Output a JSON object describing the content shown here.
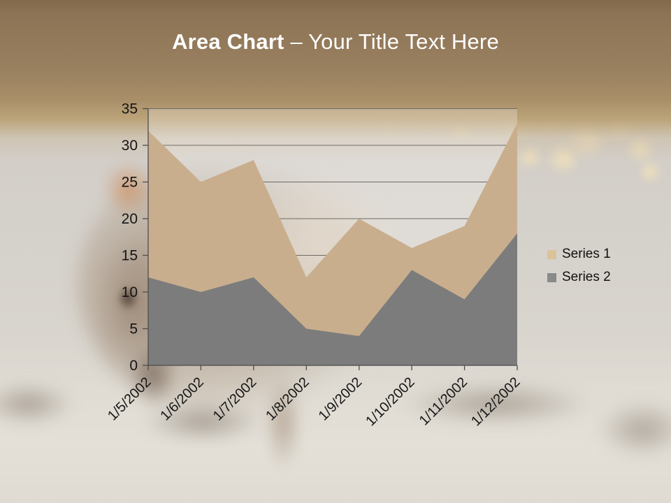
{
  "slide": {
    "title": {
      "bold": "Area Chart",
      "rest": " – Your Title Text Here"
    }
  },
  "chart_data": {
    "type": "area",
    "mode": "overlapping",
    "categories": [
      "1/5/2002",
      "1/6/2002",
      "1/7/2002",
      "1/8/2002",
      "1/9/2002",
      "1/10/2002",
      "1/11/2002",
      "1/12/2002"
    ],
    "series": [
      {
        "name": "Series 1",
        "color": "#C9AE8E",
        "swatch_color": "#DCC29A",
        "values": [
          32,
          25,
          28,
          12,
          20,
          16,
          19,
          33
        ]
      },
      {
        "name": "Series 2",
        "color": "#7C7C7C",
        "swatch_color": "#8A8A8A",
        "values": [
          12,
          10,
          12,
          5,
          4,
          13,
          9,
          18
        ]
      }
    ],
    "title": "",
    "xlabel": "",
    "ylabel": "",
    "ylim": [
      0,
      35
    ],
    "ytick_step": 5,
    "grid": true,
    "gridline_color": "#6e6a64",
    "axis_color": "#4d4d4d",
    "legend_position": "right",
    "x_label_rotation_deg": -45
  }
}
